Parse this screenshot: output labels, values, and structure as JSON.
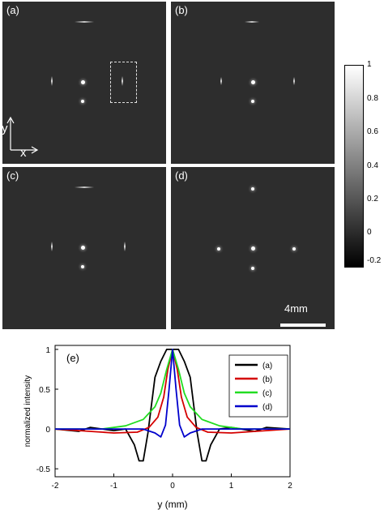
{
  "panels": {
    "a": {
      "label": "(a)"
    },
    "b": {
      "label": "(b)"
    },
    "c": {
      "label": "(c)"
    },
    "d": {
      "label": "(d)"
    }
  },
  "axes_indicator": {
    "y": "y",
    "x": "x"
  },
  "scale_bar": {
    "label": "4mm"
  },
  "colorbar": {
    "ticks": [
      "1",
      "0.8",
      "0.6",
      "0.4",
      "0.2",
      "0",
      "-0.2"
    ]
  },
  "chart_data": {
    "type": "line",
    "panel_label": "(e)",
    "xlabel": "y  (mm)",
    "ylabel": "normalized intensity",
    "xlim": [
      -2,
      2
    ],
    "ylim": [
      -0.6,
      1.05
    ],
    "xticks": [
      "-2",
      "-1",
      "0",
      "1",
      "2"
    ],
    "yticks": [
      "1",
      "0.5",
      "0",
      "-0.5"
    ],
    "legend_position": "top-right",
    "series": [
      {
        "name": "(a)",
        "color": "#000000",
        "x": [
          -2,
          -1.6,
          -1.4,
          -1.0,
          -0.8,
          -0.65,
          -0.57,
          -0.5,
          -0.42,
          -0.3,
          -0.2,
          -0.1,
          0,
          0.1,
          0.2,
          0.3,
          0.42,
          0.5,
          0.57,
          0.65,
          0.8,
          1.0,
          1.4,
          1.6,
          2
        ],
        "y": [
          0,
          -0.03,
          0.02,
          -0.02,
          0.0,
          -0.2,
          -0.4,
          -0.4,
          -0.05,
          0.65,
          0.85,
          1.0,
          1.0,
          1.0,
          0.85,
          0.65,
          -0.05,
          -0.4,
          -0.4,
          -0.2,
          0.0,
          0.02,
          -0.03,
          0.02,
          0
        ]
      },
      {
        "name": "(b)",
        "color": "#d40000",
        "x": [
          -2,
          -1.0,
          -0.6,
          -0.4,
          -0.25,
          -0.15,
          -0.08,
          0,
          0.08,
          0.15,
          0.25,
          0.4,
          0.6,
          1.0,
          2
        ],
        "y": [
          0,
          -0.05,
          -0.04,
          0.02,
          0.15,
          0.4,
          0.75,
          1.0,
          0.75,
          0.4,
          0.15,
          0.02,
          -0.04,
          -0.05,
          0
        ]
      },
      {
        "name": "(c)",
        "color": "#22dd22",
        "x": [
          -2,
          -1.2,
          -0.8,
          -0.5,
          -0.3,
          -0.2,
          -0.1,
          0,
          0.1,
          0.2,
          0.3,
          0.5,
          0.8,
          1.2,
          2
        ],
        "y": [
          0,
          0.0,
          0.04,
          0.12,
          0.28,
          0.45,
          0.75,
          1.0,
          0.75,
          0.45,
          0.28,
          0.12,
          0.04,
          0.0,
          0
        ]
      },
      {
        "name": "(d)",
        "color": "#0000cc",
        "x": [
          -2,
          -1.0,
          -0.5,
          -0.3,
          -0.2,
          -0.12,
          -0.06,
          0,
          0.06,
          0.12,
          0.2,
          0.3,
          0.5,
          1.0,
          2
        ],
        "y": [
          0,
          0.0,
          0.0,
          -0.05,
          -0.1,
          0.05,
          0.5,
          1.0,
          0.5,
          0.05,
          -0.1,
          -0.05,
          0.0,
          0.0,
          0
        ]
      }
    ]
  }
}
